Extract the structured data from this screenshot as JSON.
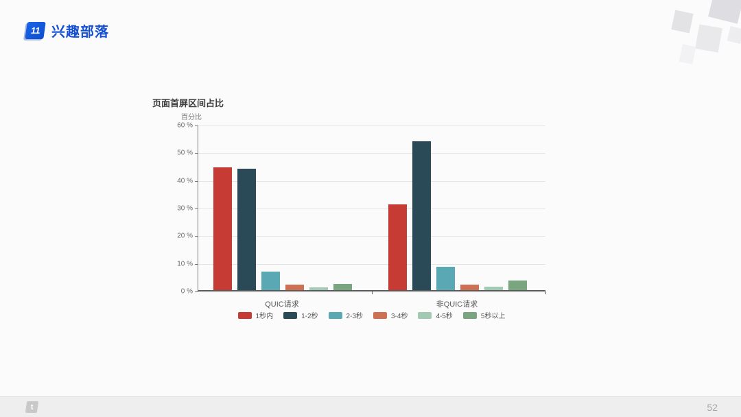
{
  "header": {
    "logo_badge": "11",
    "brand": "兴趣部落",
    "brand_color": "#1550d2"
  },
  "chart_data": {
    "type": "bar",
    "title": "页面首屏区间占比",
    "ylabel": "百分比",
    "xlabel": "",
    "categories": [
      "QUIC请求",
      "非QUIC请求"
    ],
    "series": [
      {
        "name": "1秒内",
        "color": "#c63c35",
        "values": [
          44.4,
          30.9
        ]
      },
      {
        "name": "1-2秒",
        "color": "#2b4a57",
        "values": [
          43.9,
          53.7
        ]
      },
      {
        "name": "2-3秒",
        "color": "#5ba8b5",
        "values": [
          6.7,
          8.5
        ]
      },
      {
        "name": "3-4秒",
        "color": "#cd7152",
        "values": [
          2.0,
          2.1
        ]
      },
      {
        "name": "4-5秒",
        "color": "#a2c9b2",
        "values": [
          1.0,
          1.2
        ]
      },
      {
        "name": "5秒以上",
        "color": "#79a57f",
        "values": [
          2.2,
          3.4
        ]
      }
    ],
    "ylim": [
      0,
      60
    ],
    "ytick_step": 10,
    "ytick_suffix": " %",
    "grid": true,
    "legend_position": "bottom"
  },
  "footer": {
    "logo_glyph": "t",
    "page_number": "52"
  }
}
